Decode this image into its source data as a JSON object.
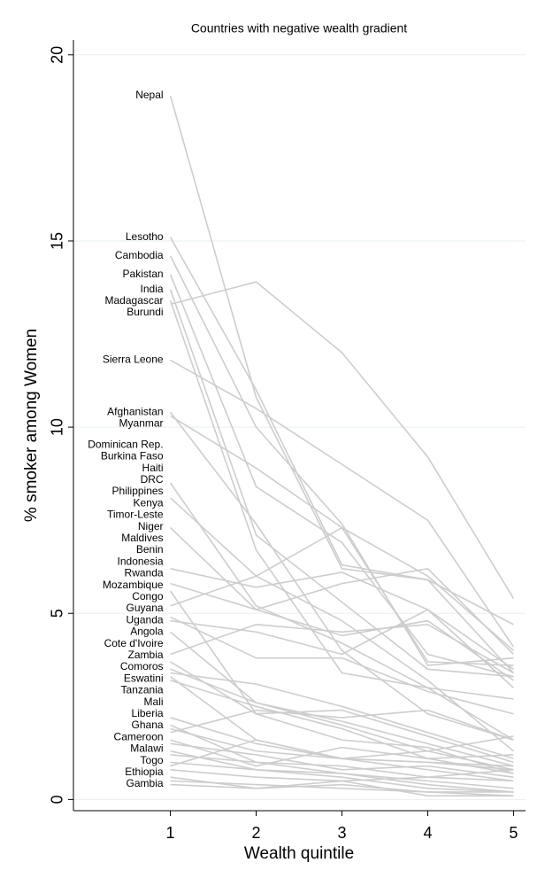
{
  "chart_data": {
    "type": "line",
    "title": "Countries with negative wealth gradient",
    "x_label": "Wealth quintile",
    "y_label": "% smoker among Women",
    "x": [
      1,
      2,
      3,
      4,
      5
    ],
    "xlim": [
      -0.13,
      5.14
    ],
    "xticks": [
      1,
      2,
      3,
      4,
      5
    ],
    "ylim": [
      -0.3,
      20.4
    ],
    "yticks": [
      0,
      5,
      10,
      15,
      20
    ],
    "grid": true,
    "color": "#cdcdcd",
    "series": [
      {
        "name": "Nepal",
        "values": [
          18.9,
          10.8,
          6.2,
          5.9,
          3.4
        ]
      },
      {
        "name": "Lesotho",
        "values": [
          15.1,
          11.0,
          6.3,
          5.9,
          4.7
        ]
      },
      {
        "name": "Cambodia",
        "values": [
          14.6,
          10.0,
          7.4,
          3.6,
          3.8
        ]
      },
      {
        "name": "Pakistan",
        "values": [
          14.1,
          8.4,
          6.9,
          3.9,
          3.3
        ]
      },
      {
        "name": "India",
        "values": [
          13.7,
          7.1,
          5.3,
          3.5,
          3.3
        ]
      },
      {
        "name": "Burundi",
        "values": [
          13.3,
          13.9,
          12.0,
          9.2,
          5.4
        ]
      },
      {
        "name": "Madagascar",
        "values": [
          13.4,
          6.7,
          3.4,
          3.0,
          1.6
        ]
      },
      {
        "name": "Sierra Leone",
        "values": [
          11.8,
          10.5,
          9.0,
          7.5,
          4.1
        ]
      },
      {
        "name": "Afghanistan",
        "values": [
          10.4,
          7.4,
          4.0,
          2.3,
          1.6
        ]
      },
      {
        "name": "Myanmar",
        "values": [
          10.3,
          8.9,
          7.3,
          6.0,
          4.0
        ]
      },
      {
        "name": "Dominican Rep.",
        "values": [
          8.5,
          5.2,
          4.2,
          3.0,
          2.7
        ]
      },
      {
        "name": "Burkina Faso",
        "values": [
          8.1,
          6.0,
          4.8,
          3.2,
          1.3
        ]
      },
      {
        "name": "Haiti",
        "values": [
          7.3,
          5.1,
          4.4,
          4.8,
          3.2
        ]
      },
      {
        "name": "DRC",
        "values": [
          6.2,
          5.7,
          6.1,
          5.1,
          3.0
        ]
      },
      {
        "name": "Philippines",
        "values": [
          5.8,
          5.1,
          5.8,
          6.2,
          3.9
        ]
      },
      {
        "name": "Kenya",
        "values": [
          5.6,
          2.3,
          2.4,
          1.7,
          1.0
        ]
      },
      {
        "name": "Timor-Leste",
        "values": [
          5.2,
          6.0,
          7.3,
          3.7,
          3.6
        ]
      },
      {
        "name": "Niger",
        "values": [
          4.9,
          3.8,
          3.8,
          2.9,
          2.3
        ]
      },
      {
        "name": "Maldives",
        "values": [
          4.8,
          4.5,
          3.9,
          5.1,
          3.5
        ]
      },
      {
        "name": "Benin",
        "values": [
          4.5,
          2.6,
          2.1,
          1.5,
          0.9
        ]
      },
      {
        "name": "Indonesia",
        "values": [
          3.9,
          4.7,
          4.5,
          4.7,
          3.4
        ]
      },
      {
        "name": "Rwanda",
        "values": [
          3.7,
          2.3,
          1.6,
          1.4,
          0.7
        ]
      },
      {
        "name": "Mozambique",
        "values": [
          3.5,
          2.6,
          2.0,
          1.3,
          0.8
        ]
      },
      {
        "name": "Congo",
        "values": [
          3.4,
          3.1,
          2.5,
          1.8,
          1.1
        ]
      },
      {
        "name": "Guyana",
        "values": [
          3.3,
          1.6,
          1.1,
          1.3,
          1.7
        ]
      },
      {
        "name": "Uganda",
        "values": [
          3.2,
          2.5,
          1.9,
          1.1,
          0.7
        ]
      },
      {
        "name": "Angola",
        "values": [
          2.2,
          1.5,
          1.1,
          0.8,
          0.5
        ]
      },
      {
        "name": "Cote d'Ivoire",
        "values": [
          2.0,
          1.0,
          0.7,
          0.5,
          0.3
        ]
      },
      {
        "name": "Zambia",
        "values": [
          1.9,
          1.3,
          1.1,
          1.0,
          0.8
        ]
      },
      {
        "name": "Comoros",
        "values": [
          1.8,
          2.4,
          2.2,
          2.4,
          1.6
        ]
      },
      {
        "name": "Eswatini",
        "values": [
          1.6,
          0.9,
          1.4,
          1.1,
          1.2
        ]
      },
      {
        "name": "Tanzania",
        "values": [
          1.5,
          1.2,
          0.8,
          0.9,
          0.6
        ]
      },
      {
        "name": "Mali",
        "values": [
          1.3,
          0.8,
          0.7,
          0.4,
          0.2
        ]
      },
      {
        "name": "Liberia",
        "values": [
          1.2,
          1.0,
          0.9,
          0.6,
          0.5
        ]
      },
      {
        "name": "Ghana",
        "values": [
          1.0,
          0.8,
          0.6,
          0.3,
          0.2
        ]
      },
      {
        "name": "Cameroon",
        "values": [
          0.9,
          1.6,
          1.1,
          1.0,
          0.9
        ]
      },
      {
        "name": "Malawi",
        "values": [
          0.8,
          0.6,
          0.5,
          0.6,
          0.8
        ]
      },
      {
        "name": "Togo",
        "values": [
          0.6,
          0.3,
          0.5,
          0.1,
          0.1
        ]
      },
      {
        "name": "Ethiopia",
        "values": [
          0.5,
          0.4,
          0.3,
          0.2,
          0.1
        ]
      },
      {
        "name": "Gambia",
        "values": [
          0.4,
          0.3,
          0.4,
          0.2,
          0.2
        ]
      }
    ]
  }
}
